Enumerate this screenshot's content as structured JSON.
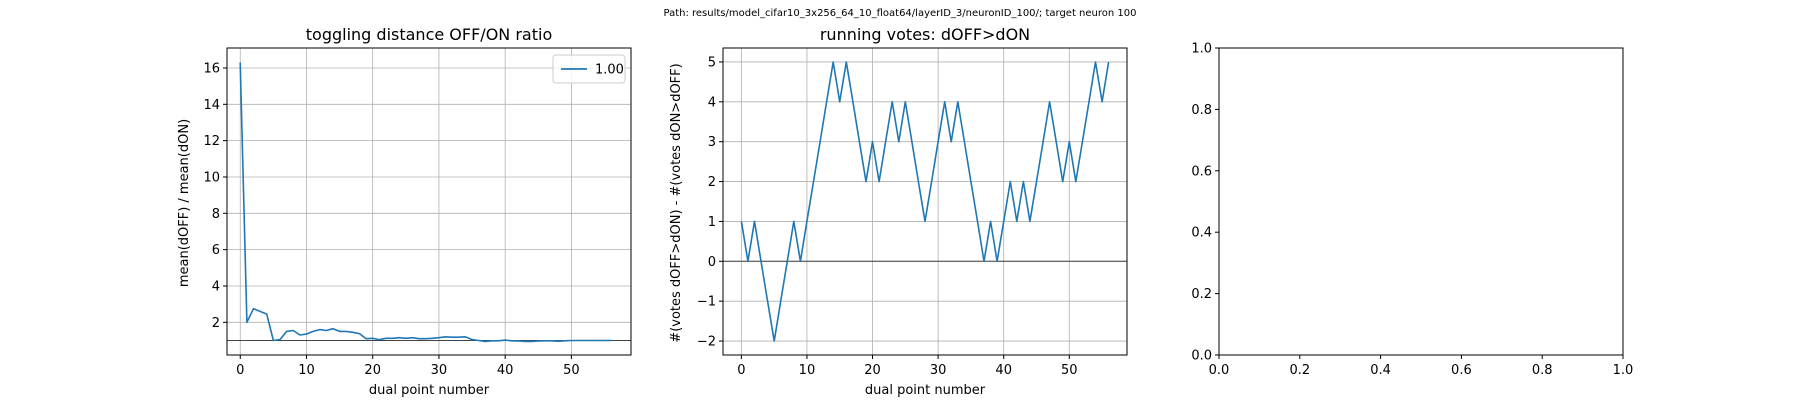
{
  "figure": {
    "suptitle": "Path: results/model_cifar10_3x256_64_10_float64/layerID_3/neuronID_100/; target neuron 100"
  },
  "chart_data": [
    {
      "type": "line",
      "title": "toggling distance OFF/ON ratio",
      "xlabel": "dual point number",
      "ylabel": "mean(dOFF) / mean(dON)",
      "xlim": [
        -2,
        59
      ],
      "ylim": [
        0.2,
        17.1
      ],
      "xticks": [
        0,
        10,
        20,
        30,
        40,
        50
      ],
      "yticks": [
        2,
        4,
        6,
        8,
        10,
        12,
        14,
        16
      ],
      "grid": true,
      "legend": {
        "placement": "top-right",
        "entries": [
          "1.00"
        ]
      },
      "hline": 1.0,
      "color": "#1f77b4",
      "series": [
        {
          "name": "1.00",
          "x": [
            0,
            1,
            2,
            3,
            4,
            5,
            6,
            7,
            8,
            9,
            10,
            11,
            12,
            13,
            14,
            15,
            16,
            17,
            18,
            19,
            20,
            21,
            22,
            23,
            24,
            25,
            26,
            27,
            28,
            29,
            30,
            31,
            32,
            33,
            34,
            35,
            36,
            37,
            38,
            39,
            40,
            41,
            42,
            43,
            44,
            45,
            46,
            47,
            48,
            49,
            50,
            51,
            52,
            53,
            54,
            55,
            56
          ],
          "values": [
            16.3,
            2.0,
            2.75,
            2.6,
            2.45,
            1.0,
            1.05,
            1.5,
            1.55,
            1.3,
            1.35,
            1.5,
            1.6,
            1.55,
            1.65,
            1.5,
            1.5,
            1.45,
            1.38,
            1.1,
            1.12,
            1.05,
            1.12,
            1.12,
            1.15,
            1.12,
            1.15,
            1.1,
            1.1,
            1.12,
            1.15,
            1.2,
            1.18,
            1.18,
            1.2,
            1.05,
            1.0,
            0.95,
            0.98,
            0.98,
            1.02,
            0.98,
            0.97,
            0.95,
            0.95,
            0.97,
            0.98,
            0.98,
            0.96,
            0.98,
            1.0,
            1.0,
            1.0,
            1.0,
            1.0,
            1.0,
            1.0
          ]
        }
      ]
    },
    {
      "type": "line",
      "title": "running votes: dOFF>dON",
      "xlabel": "dual point number",
      "ylabel": "#(votes dOFF>dON) - #(votes dON>dOFF)",
      "xlim": [
        -2.8,
        58.8
      ],
      "ylim": [
        -2.35,
        5.35
      ],
      "xticks": [
        0,
        10,
        20,
        30,
        40,
        50
      ],
      "yticks": [
        -2,
        -1,
        0,
        1,
        2,
        3,
        4,
        5
      ],
      "grid": true,
      "hline": 0,
      "color": "#1f77b4",
      "series": [
        {
          "x": [
            0,
            1,
            2,
            3,
            4,
            5,
            6,
            7,
            8,
            9,
            10,
            11,
            12,
            13,
            14,
            15,
            16,
            17,
            18,
            19,
            20,
            21,
            22,
            23,
            24,
            25,
            26,
            27,
            28,
            29,
            30,
            31,
            32,
            33,
            34,
            35,
            36,
            37,
            38,
            39,
            40,
            41,
            42,
            43,
            44,
            45,
            46,
            47,
            48,
            49,
            50,
            51,
            52,
            53,
            54,
            55,
            56
          ],
          "values": [
            1,
            0,
            1,
            0,
            -1,
            -2,
            -1,
            0,
            1,
            0,
            1,
            2,
            3,
            4,
            5,
            4,
            5,
            4,
            3,
            2,
            3,
            2,
            3,
            4,
            3,
            4,
            3,
            2,
            1,
            2,
            3,
            4,
            3,
            4,
            3,
            2,
            1,
            0,
            1,
            0,
            1,
            2,
            1,
            2,
            1,
            2,
            3,
            4,
            3,
            2,
            3,
            2,
            3,
            4,
            5,
            4,
            5
          ]
        }
      ]
    },
    {
      "type": "line",
      "title": "",
      "xlim": [
        0,
        1
      ],
      "ylim": [
        0,
        1
      ],
      "xticks": [
        "0.0",
        "0.2",
        "0.4",
        "0.6",
        "0.8",
        "1.0"
      ],
      "yticks": [
        "0.0",
        "0.2",
        "0.4",
        "0.6",
        "0.8",
        "1.0"
      ],
      "grid": false,
      "series": []
    }
  ]
}
